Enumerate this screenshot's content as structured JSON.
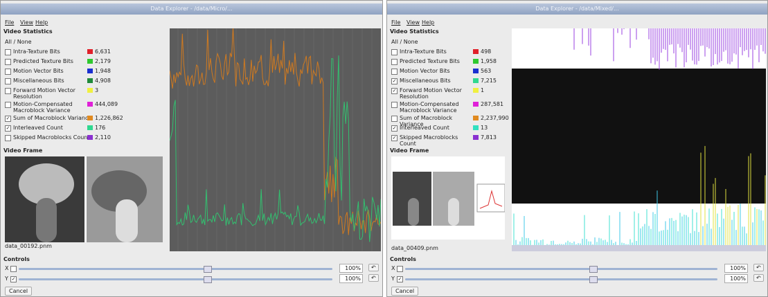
{
  "windows": [
    {
      "title": "Data Explorer - /data/Micro/...",
      "menu": [
        "File",
        "View",
        "Help"
      ],
      "stats_header": "Video Statistics",
      "all_none": "All / None",
      "stats": [
        {
          "label": "Intra-Texture Bits",
          "value": "6,631",
          "color": "#e0202a",
          "checked": false
        },
        {
          "label": "Predicted Texture Bits",
          "value": "2,179",
          "color": "#2ec82e",
          "checked": false
        },
        {
          "label": "Motion Vector Bits",
          "value": "1,948",
          "color": "#1a2fd0",
          "checked": false
        },
        {
          "label": "Miscellaneous Bits",
          "value": "4,908",
          "color": "#1f8a3a",
          "checked": false
        },
        {
          "label": "Forward Motion Vector Resolution",
          "value": "3",
          "color": "#f0f040",
          "checked": false
        },
        {
          "label": "Motion-Compensated Macroblock Variance",
          "value": "444,089",
          "color": "#e020d8",
          "checked": false
        },
        {
          "label": "Sum of Macroblock Variance",
          "value": "1,226,862",
          "color": "#e08a20",
          "checked": true
        },
        {
          "label": "Interleaved Count",
          "value": "176",
          "color": "#30d890",
          "checked": true
        },
        {
          "label": "Skipped Macroblocks Count",
          "value": "2,110",
          "color": "#8a30d0",
          "checked": false
        }
      ],
      "frame_header": "Video Frame",
      "filename": "data_00192.pnm",
      "controls_header": "Controls",
      "x_label": "X",
      "y_label": "Y",
      "zoom_x": "100%",
      "zoom_y": "100%",
      "cancel": "Cancel"
    },
    {
      "title": "Data Explorer - /data/Mixed/...",
      "menu": [
        "File",
        "View",
        "Help"
      ],
      "stats_header": "Video Statistics",
      "all_none": "All / None",
      "stats": [
        {
          "label": "Intra-Texture Bits",
          "value": "498",
          "color": "#e0202a",
          "checked": false
        },
        {
          "label": "Predicted Texture Bits",
          "value": "1,958",
          "color": "#2ec82e",
          "checked": false
        },
        {
          "label": "Motion Vector Bits",
          "value": "563",
          "color": "#1a2fd0",
          "checked": false
        },
        {
          "label": "Miscellaneous Bits",
          "value": "7,215",
          "color": "#30d890",
          "checked": true
        },
        {
          "label": "Forward Motion Vector Resolution",
          "value": "1",
          "color": "#f0f040",
          "checked": true
        },
        {
          "label": "Motion-Compensated Macroblock Variance",
          "value": "287,581",
          "color": "#e020d8",
          "checked": false
        },
        {
          "label": "Sum of Macroblock Variance",
          "value": "2,237,990",
          "color": "#e08a20",
          "checked": false
        },
        {
          "label": "Interleaved Count",
          "value": "13",
          "color": "#30e0c0",
          "checked": true
        },
        {
          "label": "Skipped Macroblocks Count",
          "value": "7,813",
          "color": "#8a30d0",
          "checked": true
        }
      ],
      "frame_header": "Video Frame",
      "filename": "data_00409.pnm",
      "controls_header": "Controls",
      "x_label": "X",
      "y_label": "Y",
      "zoom_x": "100%",
      "zoom_y": "100%",
      "cancel": "Cancel"
    }
  ]
}
